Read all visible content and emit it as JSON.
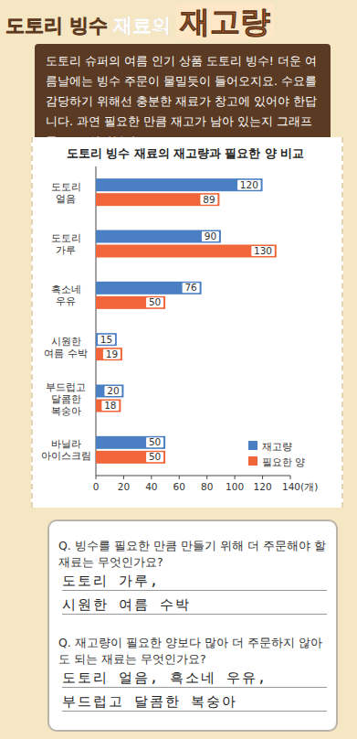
{
  "header": {
    "title": [
      "도토리 빙수",
      "재료의",
      "재고량"
    ]
  },
  "intro": "도토리 슈퍼의 여름 인기 상품 도토리 빙수! 더운 여름날에는 빙수 주문이 물밀듯이 들어오지요. 수요를 감당하기 위해선 충분한 재료가 창고에 있어야 한답니다. 과연 필요한 만큼 재고가 남아 있는지 그래프를 보고 알아볼까요?",
  "chart_data": {
    "type": "bar",
    "orientation": "horizontal",
    "title": "도토리 빙수 재료의 재고량과 필요한 양 비교",
    "categories": [
      "도토리\n얼음",
      "도토리\n가루",
      "흑소네\n우유",
      "시원한\n여름 수박",
      "부드럽고\n달콤한\n복숭아",
      "바닐라\n아이스크림"
    ],
    "series": [
      {
        "name": "재고량",
        "color": "#4a7fc4",
        "values": [
          120,
          90,
          76,
          15,
          20,
          50
        ]
      },
      {
        "name": "필요한 양",
        "color": "#f0663a",
        "values": [
          89,
          130,
          50,
          19,
          18,
          50
        ]
      }
    ],
    "xlim": [
      0,
      140
    ],
    "xticks": [
      0,
      20,
      40,
      60,
      80,
      100,
      120,
      {
        "value": 140,
        "label": "140(개)"
      }
    ],
    "grid": false,
    "data_labels": true,
    "legend": "lower right"
  },
  "questions": [
    {
      "q": "Q. 빙수를 필요한 만큼 만들기 위해 더 주문해야 할 재료는 무엇인가요?",
      "answers": [
        "도토리 가루,",
        "시원한 여름 수박"
      ]
    },
    {
      "q": "Q. 재고량이 필요한 양보다 많아 더 주문하지 않아도 되는 재료는 무엇인가요?",
      "answers": [
        "도토리 얼음, 흑소네 우유,",
        "부드럽고 달콤한 복숭아"
      ]
    }
  ]
}
